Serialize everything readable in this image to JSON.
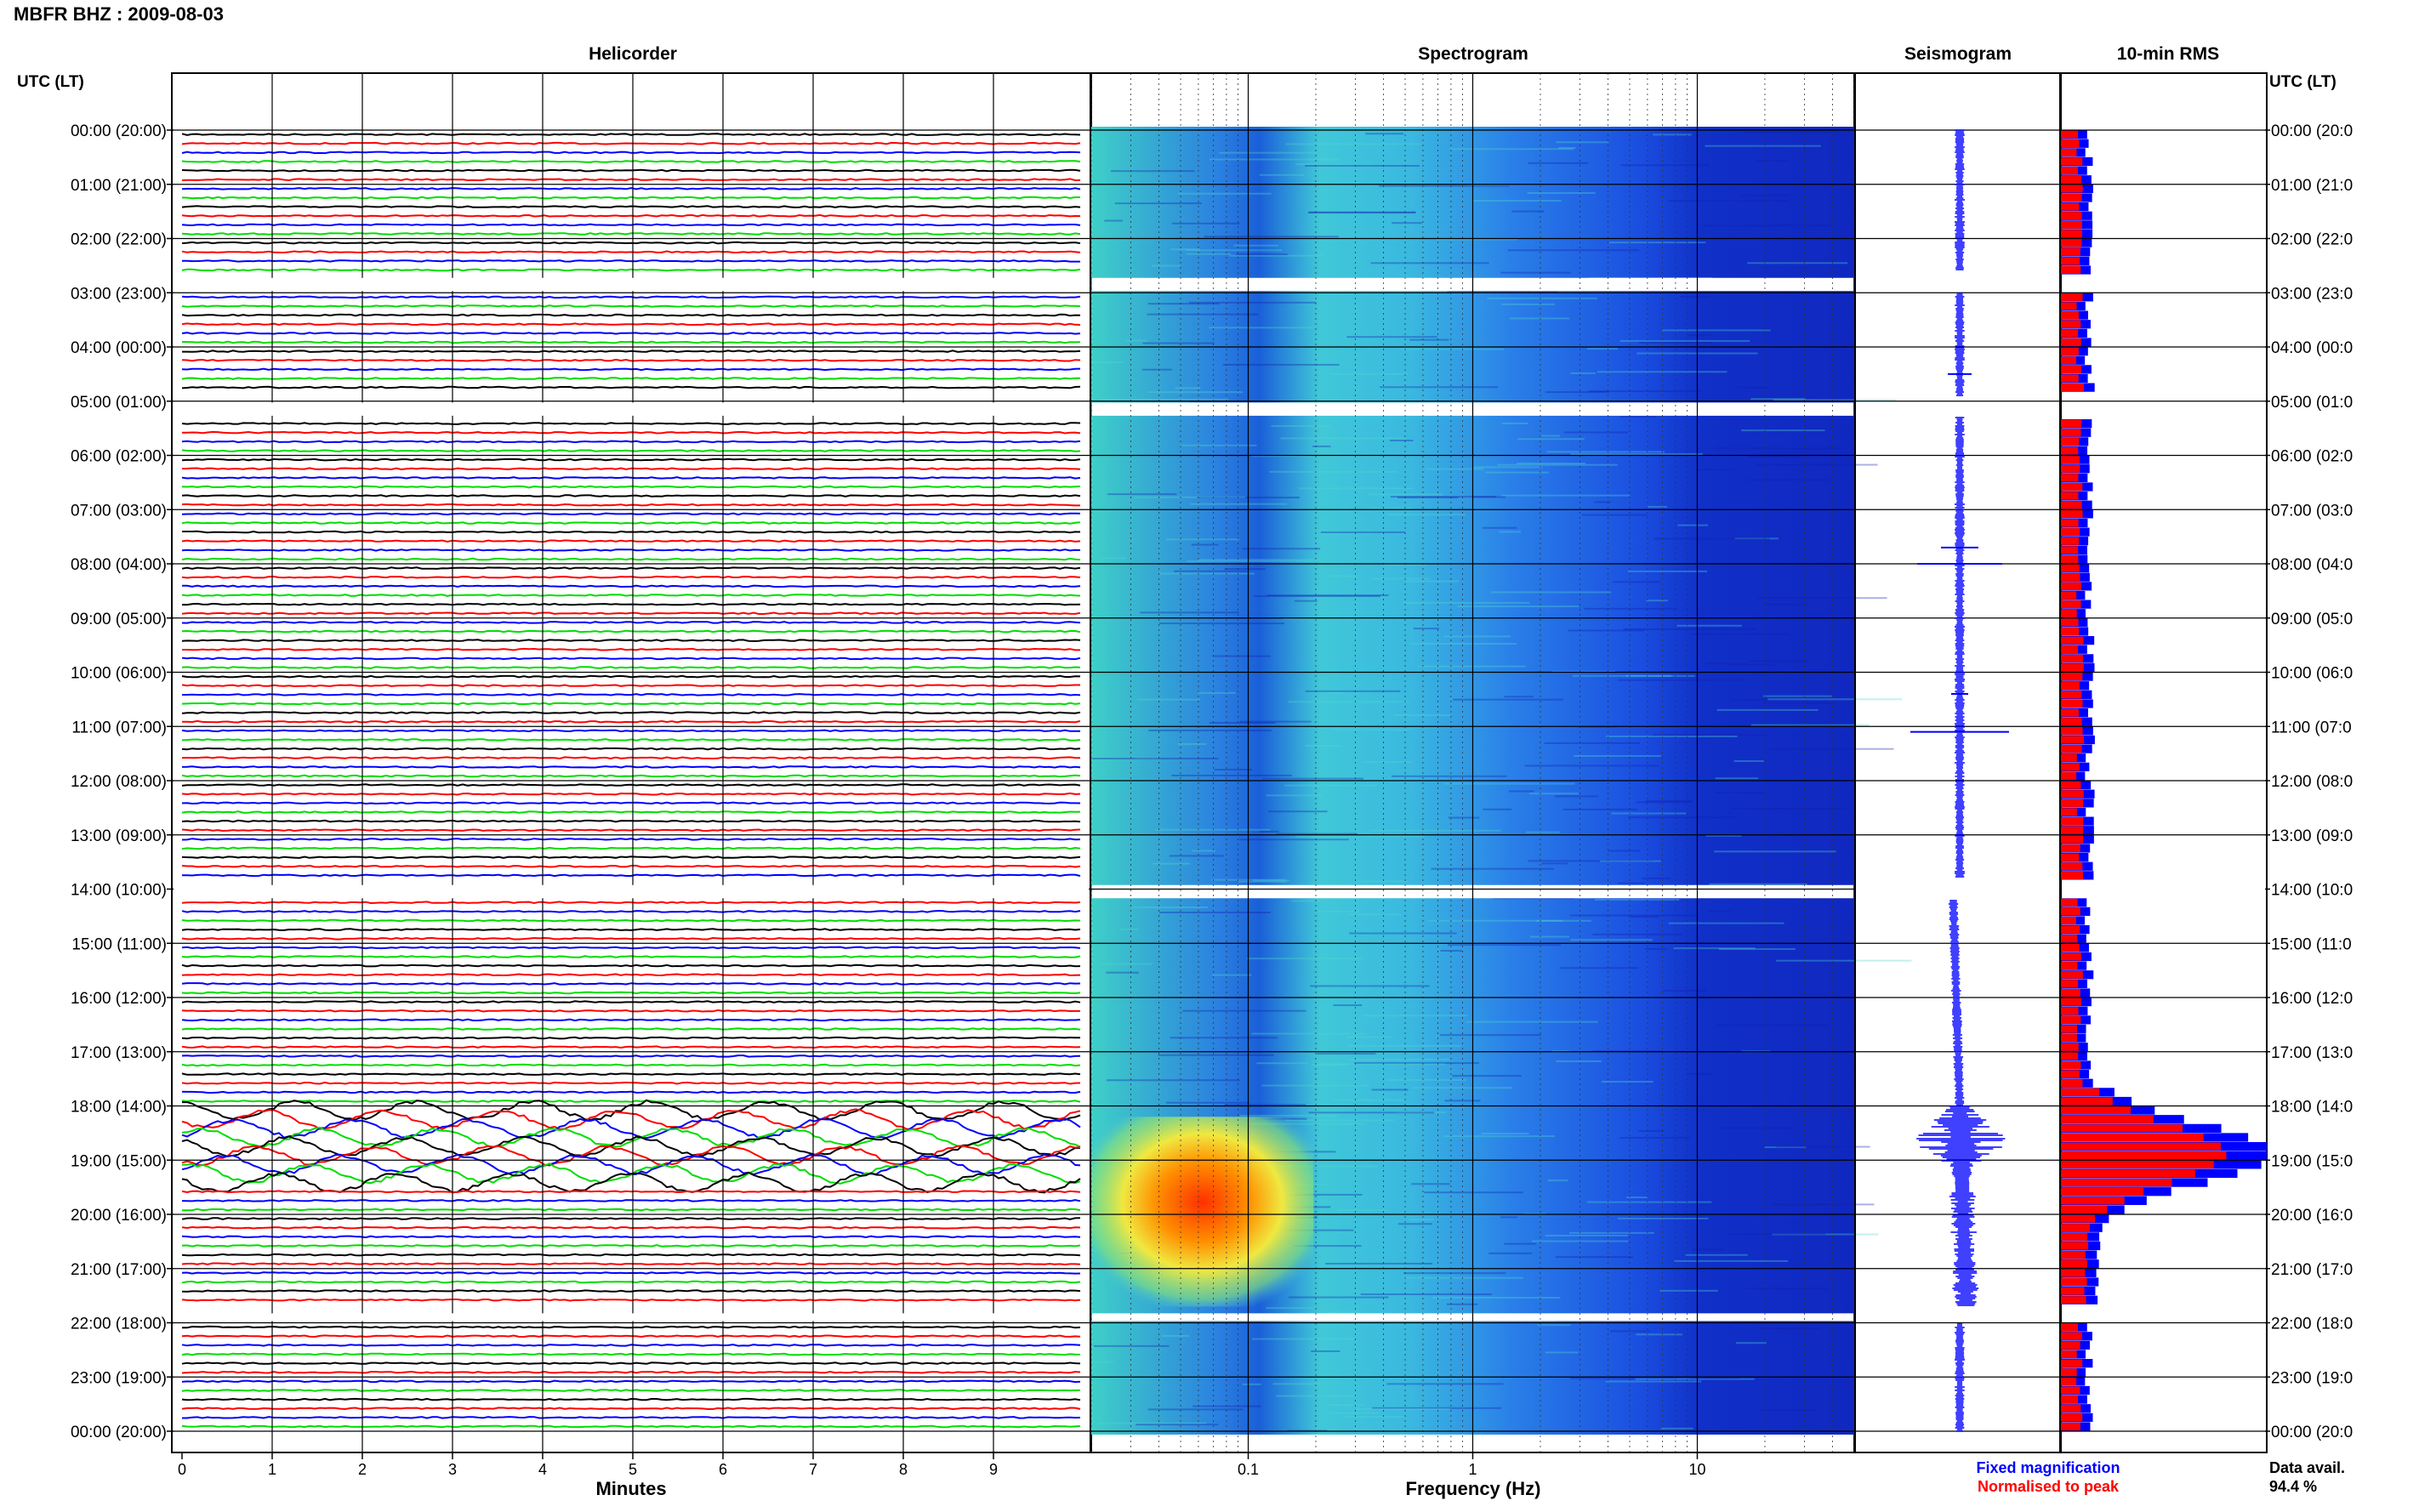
{
  "header": {
    "title": "MBFR BHZ : 2009-08-03",
    "utc_left": "UTC (LT)",
    "utc_right": "UTC (LT)"
  },
  "panels": {
    "helicorder": "Helicorder",
    "spectrogram": "Spectrogram",
    "seismogram": "Seismogram",
    "rms": "10-min RMS"
  },
  "time_labels_left": [
    "00:00 (20:00)",
    "01:00 (21:00)",
    "02:00 (22:00)",
    "03:00 (23:00)",
    "04:00 (00:00)",
    "05:00 (01:00)",
    "06:00 (02:00)",
    "07:00 (03:00)",
    "08:00 (04:00)",
    "09:00 (05:00)",
    "10:00 (06:00)",
    "11:00 (07:00)",
    "12:00 (08:00)",
    "13:00 (09:00)",
    "14:00 (10:00)",
    "15:00 (11:00)",
    "16:00 (12:00)",
    "17:00 (13:00)",
    "18:00 (14:00)",
    "19:00 (15:00)",
    "20:00 (16:00)",
    "21:00 (17:00)",
    "22:00 (18:00)",
    "23:00 (19:00)",
    "00:00 (20:00)"
  ],
  "time_labels_right": [
    "00:00 (20:0",
    "01:00 (21:0",
    "02:00 (22:0",
    "03:00 (23:0",
    "04:00 (00:0",
    "05:00 (01:0",
    "06:00 (02:0",
    "07:00 (03:0",
    "08:00 (04:0",
    "09:00 (05:0",
    "10:00 (06:0",
    "11:00 (07:0",
    "12:00 (08:0",
    "13:00 (09:0",
    "14:00 (10:0",
    "15:00 (11:0",
    "16:00 (12:0",
    "17:00 (13:0",
    "18:00 (14:0",
    "19:00 (15:0",
    "20:00 (16:0",
    "21:00 (17:0",
    "22:00 (18:0",
    "23:00 (19:0",
    "00:00 (20:0"
  ],
  "helicorder_axis": {
    "ticks": [
      "0",
      "1",
      "2",
      "3",
      "4",
      "5",
      "6",
      "7",
      "8",
      "9"
    ],
    "xlabel": "Minutes"
  },
  "spectrogram_axis": {
    "ticks": [
      "0.1",
      "1",
      "10"
    ],
    "xlabel": "Frequency (Hz)"
  },
  "legend": {
    "fixed": "Fixed magnification",
    "normalised": "Normalised to peak",
    "fixed_color": "#0000ff",
    "normalised_color": "#ff0000"
  },
  "availability": {
    "label": "Data avail.",
    "value": "94.4 %"
  },
  "chart_data": [
    {
      "type": "line",
      "panel": "Helicorder",
      "xlabel": "Minutes",
      "x_range": [
        0,
        10
      ],
      "rows": 24,
      "lines_per_hour": 6,
      "trace_colors": [
        "#000000",
        "#ff0000",
        "#0000ff",
        "#00dd00"
      ],
      "gaps_hours": [
        [
          2.6,
          3.0
        ],
        [
          4.9,
          5.3
        ],
        [
          13.8,
          14.2
        ],
        [
          21.7,
          22.0
        ]
      ],
      "strong_signal_hours": [
        18.0,
        19.5
      ]
    },
    {
      "type": "heatmap",
      "panel": "Spectrogram",
      "xlabel": "Frequency (Hz)",
      "x_scale": "log",
      "x_range": [
        0.02,
        50
      ],
      "colormap": "jet",
      "high_energy_region": {
        "hours": [
          18.2,
          21.7
        ],
        "freq_hz": [
          0.02,
          0.15
        ]
      }
    },
    {
      "type": "bar",
      "panel": "10-min RMS",
      "peak_hours": [
        18.0,
        19.5
      ],
      "series": [
        {
          "name": "Fixed magnification",
          "color": "#0000ff"
        },
        {
          "name": "Normalised to peak",
          "color": "#ff0000"
        }
      ]
    }
  ]
}
